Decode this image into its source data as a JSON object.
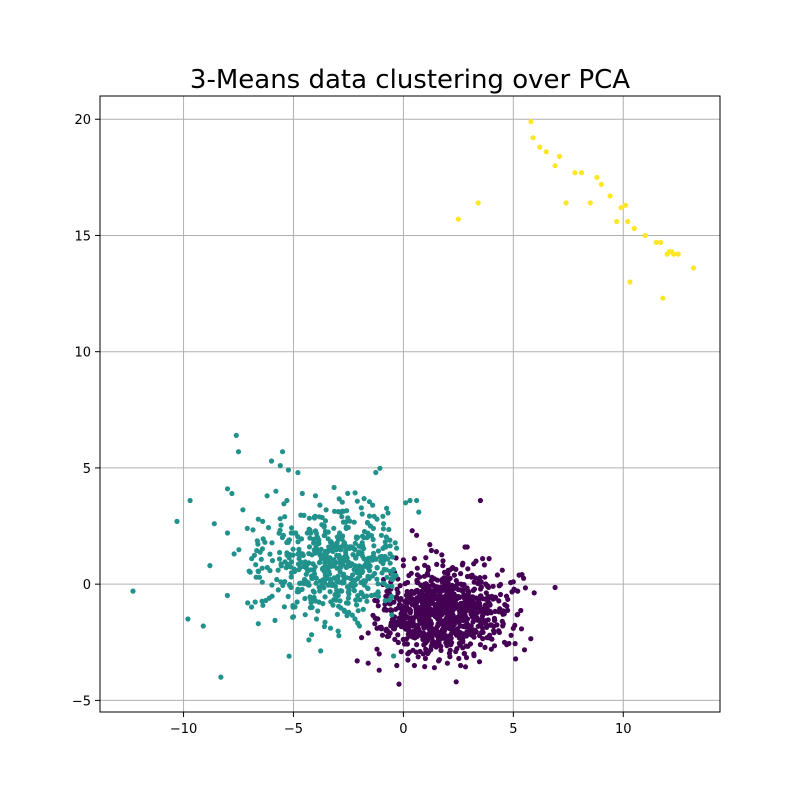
{
  "chart_data": {
    "type": "scatter",
    "title": "3-Means data clustering over PCA",
    "xlabel": "",
    "ylabel": "",
    "xlim": [
      -13.8,
      14.4
    ],
    "ylim": [
      -5.5,
      21.0
    ],
    "xticks": [
      -10,
      -5,
      0,
      5,
      10
    ],
    "yticks": [
      -5,
      0,
      5,
      10,
      15,
      20
    ],
    "xtick_labels": [
      "−10",
      "−5",
      "0",
      "5",
      "10"
    ],
    "ytick_labels": [
      "−5",
      "0",
      "5",
      "10",
      "15",
      "20"
    ],
    "grid": true,
    "legend": false,
    "series": [
      {
        "color": "#440154",
        "cluster_summary": {
          "n": 900,
          "center": [
            1.8,
            -1.2
          ],
          "spread": [
            1.45,
            0.85
          ],
          "x_min": -1.4,
          "y_max": 1.8
        },
        "points": [
          [
            3.5,
            3.6
          ],
          [
            0.4,
            2.3
          ],
          [
            0.6,
            2.1
          ],
          [
            1.2,
            1.7
          ],
          [
            2.8,
            1.6
          ],
          [
            2.9,
            1.6
          ],
          [
            1.5,
            1.4
          ],
          [
            3.6,
            1.1
          ],
          [
            3.9,
            1.1
          ],
          [
            4.5,
            0.6
          ],
          [
            5.0,
            0.1
          ],
          [
            5.2,
            -0.3
          ],
          [
            5.2,
            -1.3
          ],
          [
            5.0,
            -1.9
          ],
          [
            4.9,
            -2.2
          ],
          [
            4.7,
            -2.6
          ],
          [
            4.0,
            -2.8
          ],
          [
            3.2,
            -3.0
          ],
          [
            3.5,
            -2.6
          ],
          [
            2.6,
            -3.5
          ],
          [
            2.4,
            -4.2
          ],
          [
            1.6,
            -3.3
          ],
          [
            1.0,
            -3.2
          ],
          [
            0.5,
            -3.5
          ],
          [
            -0.1,
            -2.9
          ],
          [
            -0.3,
            -3.5
          ],
          [
            -0.2,
            -4.3
          ],
          [
            -1.1,
            -3.0
          ],
          [
            -1.1,
            -3.7
          ],
          [
            -1.2,
            -2.8
          ],
          [
            -1.6,
            -3.4
          ],
          [
            -2.1,
            -3.3
          ],
          [
            -1.9,
            -2.3
          ],
          [
            -1.6,
            -2.1
          ],
          [
            -1.2,
            -1.9
          ],
          [
            -1.3,
            -1.7
          ],
          [
            -0.6,
            -2.1
          ],
          [
            0.2,
            -1.8
          ],
          [
            0.6,
            -2.6
          ],
          [
            1.3,
            -2.3
          ],
          [
            2.5,
            -2.2
          ],
          [
            3.6,
            -1.9
          ],
          [
            4.1,
            -2.0
          ],
          [
            4.5,
            -1.6
          ],
          [
            3.3,
            -0.6
          ],
          [
            2.1,
            0.6
          ],
          [
            2.7,
            0.9
          ],
          [
            1.8,
            1.0
          ],
          [
            -0.4,
            0.5
          ],
          [
            -0.9,
            0.2
          ],
          [
            -1.3,
            -0.7
          ],
          [
            -0.7,
            -0.8
          ],
          [
            0.0,
            0.8
          ],
          [
            0.5,
            1.1
          ],
          [
            1.1,
            0.4
          ],
          [
            2.4,
            -0.1
          ],
          [
            3.7,
            0.3
          ],
          [
            4.2,
            -0.6
          ],
          [
            4.6,
            -2.5
          ],
          [
            0.9,
            -3.0
          ],
          [
            2.0,
            -3.4
          ],
          [
            3.8,
            -2.3
          ]
        ]
      },
      {
        "color": "#21918c",
        "cluster_summary": {
          "n": 520,
          "center": [
            -3.2,
            0.9
          ],
          "spread": [
            1.6,
            1.2
          ],
          "x_max": -0.3
        },
        "points": [
          [
            -12.3,
            -0.3
          ],
          [
            -10.3,
            2.7
          ],
          [
            -9.7,
            3.6
          ],
          [
            -9.8,
            -1.5
          ],
          [
            -9.1,
            -1.8
          ],
          [
            -8.8,
            0.8
          ],
          [
            -8.3,
            -4.0
          ],
          [
            -8.0,
            2.2
          ],
          [
            -8.0,
            4.1
          ],
          [
            -7.8,
            3.9
          ],
          [
            -7.6,
            6.4
          ],
          [
            -7.5,
            5.7
          ],
          [
            -7.3,
            3.2
          ],
          [
            -7.1,
            2.4
          ],
          [
            -6.9,
            1.1
          ],
          [
            -6.7,
            0.3
          ],
          [
            -6.6,
            -1.7
          ],
          [
            -6.4,
            2.7
          ],
          [
            -6.2,
            3.8
          ],
          [
            -6.0,
            5.3
          ],
          [
            -5.8,
            4.0
          ],
          [
            -5.6,
            5.1
          ],
          [
            -5.5,
            5.7
          ],
          [
            -5.3,
            3.6
          ],
          [
            -5.1,
            2.2
          ],
          [
            -5.0,
            -1.4
          ],
          [
            -5.2,
            -3.1
          ],
          [
            -4.8,
            4.8
          ],
          [
            -4.6,
            3.9
          ],
          [
            -4.5,
            0.2
          ],
          [
            -4.3,
            -2.4
          ],
          [
            -4.2,
            -0.8
          ],
          [
            -4.0,
            3.8
          ],
          [
            -3.8,
            3.4
          ],
          [
            -3.6,
            2.5
          ],
          [
            -3.4,
            1.6
          ],
          [
            -3.2,
            -0.9
          ],
          [
            -3.0,
            -1.3
          ],
          [
            -2.8,
            2.9
          ],
          [
            -2.6,
            2.4
          ],
          [
            -2.4,
            0.8
          ],
          [
            -2.2,
            -1.5
          ],
          [
            -2.0,
            -1.8
          ],
          [
            -1.8,
            2.0
          ],
          [
            -1.6,
            1.1
          ],
          [
            -1.4,
            3.4
          ],
          [
            -1.2,
            2.8
          ],
          [
            -1.0,
            2.1
          ],
          [
            -0.8,
            1.6
          ],
          [
            -0.6,
            0.9
          ],
          [
            -0.5,
            0.4
          ],
          [
            -1.9,
            1.6
          ],
          [
            -2.9,
            1.1
          ],
          [
            -3.9,
            2.0
          ],
          [
            -4.7,
            1.3
          ],
          [
            -5.4,
            2.9
          ],
          [
            -6.3,
            1.8
          ],
          [
            -7.7,
            1.3
          ],
          [
            -8.6,
            2.6
          ],
          [
            -3.3,
            0.2
          ],
          [
            -2.5,
            -0.6
          ],
          [
            -4.1,
            -0.3
          ],
          [
            -5.7,
            0.6
          ],
          [
            -6.1,
            -0.6
          ],
          [
            0.3,
            3.6
          ],
          [
            0.7,
            3.1
          ],
          [
            0.6,
            3.6
          ],
          [
            0.1,
            3.5
          ],
          [
            -0.9,
            2.6
          ],
          [
            -1.5,
            2.5
          ]
        ]
      },
      {
        "color": "#fde725",
        "points": [
          [
            5.8,
            19.9
          ],
          [
            5.9,
            19.2
          ],
          [
            6.2,
            18.8
          ],
          [
            6.5,
            18.6
          ],
          [
            6.9,
            18.0
          ],
          [
            7.1,
            18.4
          ],
          [
            7.4,
            16.4
          ],
          [
            7.8,
            17.7
          ],
          [
            8.1,
            17.7
          ],
          [
            8.5,
            16.4
          ],
          [
            8.8,
            17.5
          ],
          [
            9.0,
            17.2
          ],
          [
            9.4,
            16.7
          ],
          [
            9.7,
            15.6
          ],
          [
            9.9,
            16.2
          ],
          [
            10.1,
            16.3
          ],
          [
            10.2,
            15.6
          ],
          [
            10.3,
            13.0
          ],
          [
            10.5,
            15.3
          ],
          [
            11.0,
            15.0
          ],
          [
            11.5,
            14.7
          ],
          [
            11.7,
            14.7
          ],
          [
            11.8,
            12.3
          ],
          [
            12.0,
            14.2
          ],
          [
            12.1,
            14.3
          ],
          [
            12.2,
            14.3
          ],
          [
            12.3,
            14.2
          ],
          [
            12.5,
            14.2
          ],
          [
            13.2,
            13.6
          ],
          [
            2.5,
            15.7
          ],
          [
            3.4,
            16.4
          ]
        ]
      }
    ]
  }
}
